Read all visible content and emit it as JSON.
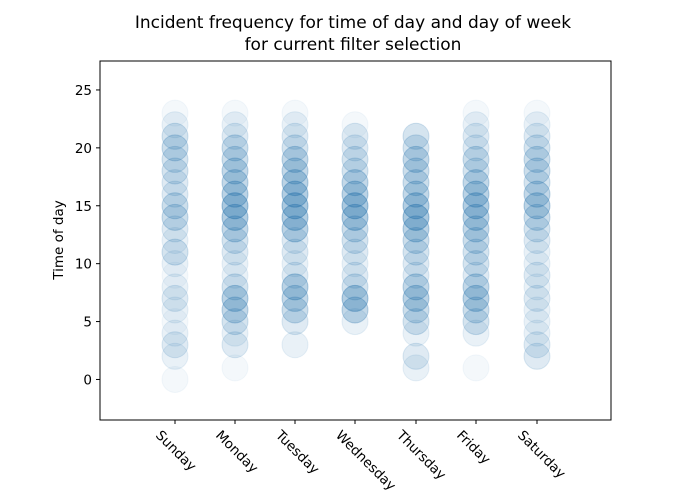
{
  "chart_data": {
    "type": "scatter",
    "title_lines": [
      "Incident frequency for time of day and day of week",
      "for current filter selection"
    ],
    "xlabel": "",
    "ylabel": "Time of day",
    "categories": [
      "Sunday",
      "Monday",
      "Tuesday",
      "Wednesday",
      "Thursday",
      "Friday",
      "Saturday"
    ],
    "yticks": [
      0,
      5,
      10,
      15,
      20,
      25
    ],
    "ylim": [
      -3.5,
      27.5
    ],
    "grid": false,
    "marker_color": "#1f77b4",
    "point_alpha": 0.05,
    "encoding": "opacity accumulates with overlapping identical points",
    "counts_by_hour": {
      "Sunday": [
        1,
        0,
        2,
        3,
        2,
        1,
        2,
        3,
        2,
        1,
        2,
        4,
        2,
        3,
        5,
        5,
        3,
        3,
        4,
        4,
        5,
        4,
        2,
        1
      ],
      "Monday": [
        0,
        1,
        0,
        3,
        2,
        4,
        6,
        7,
        4,
        2,
        2,
        3,
        4,
        6,
        8,
        9,
        7,
        6,
        6,
        5,
        5,
        3,
        2,
        1
      ],
      "Tuesday": [
        0,
        0,
        0,
        2,
        0,
        3,
        5,
        6,
        7,
        3,
        2,
        3,
        3,
        7,
        8,
        9,
        8,
        7,
        6,
        6,
        4,
        3,
        2,
        1
      ],
      "Wednesday": [
        0,
        0,
        0,
        0,
        0,
        2,
        6,
        8,
        4,
        3,
        2,
        3,
        4,
        5,
        8,
        9,
        7,
        6,
        4,
        4,
        3,
        3,
        1,
        0
      ],
      "Thursday": [
        0,
        2,
        3,
        0,
        2,
        4,
        5,
        7,
        6,
        3,
        3,
        4,
        5,
        7,
        9,
        8,
        6,
        5,
        5,
        6,
        4,
        4,
        0,
        0
      ],
      "Friday": [
        0,
        1,
        0,
        0,
        2,
        4,
        5,
        7,
        6,
        3,
        4,
        4,
        5,
        6,
        7,
        8,
        7,
        6,
        4,
        5,
        3,
        3,
        2,
        1
      ],
      "Saturday": [
        0,
        0,
        3,
        3,
        2,
        2,
        2,
        3,
        2,
        3,
        2,
        2,
        3,
        4,
        5,
        7,
        6,
        4,
        5,
        5,
        4,
        3,
        2,
        1
      ]
    }
  }
}
